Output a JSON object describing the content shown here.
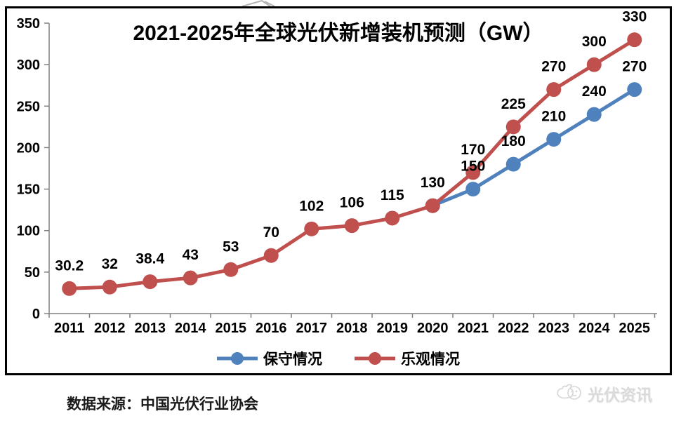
{
  "chart_data": {
    "type": "line",
    "title": "2021-2025年全球光伏新增装机预测（GW）",
    "categories": [
      "2011",
      "2012",
      "2013",
      "2014",
      "2015",
      "2016",
      "2017",
      "2018",
      "2019",
      "2020",
      "2021",
      "2022",
      "2023",
      "2024",
      "2025"
    ],
    "xlabel": "",
    "ylabel": "",
    "ylim": [
      0,
      350
    ],
    "y_ticks": [
      0,
      50,
      100,
      150,
      200,
      250,
      300,
      350
    ],
    "grid": false,
    "legend_position": "bottom",
    "axis_color": "#808080",
    "label_color": "#000000",
    "series": [
      {
        "key": "conservative",
        "name": "保守情况",
        "color": "#4f81bd",
        "values": [
          null,
          null,
          null,
          null,
          null,
          null,
          null,
          null,
          null,
          130,
          150,
          180,
          210,
          240,
          270
        ],
        "labels": [
          null,
          null,
          null,
          null,
          null,
          null,
          null,
          null,
          null,
          null,
          "150",
          "180",
          "210",
          "240",
          "270"
        ]
      },
      {
        "key": "optimistic",
        "name": "乐观情况",
        "color": "#c0504d",
        "values": [
          30.2,
          32,
          38.4,
          43,
          53,
          70,
          102,
          106,
          115,
          130,
          170,
          225,
          270,
          300,
          330
        ],
        "labels": [
          "30.2",
          "32",
          "38.4",
          "43",
          "53",
          "70",
          "102",
          "106",
          "115",
          "130",
          "170",
          "225",
          "270",
          "300",
          "330"
        ]
      }
    ]
  },
  "legend": {
    "items": [
      {
        "key": "conservative",
        "label": "保守情况",
        "color": "#4f81bd"
      },
      {
        "key": "optimistic",
        "label": "乐观情况",
        "color": "#c0504d"
      }
    ]
  },
  "footer": {
    "source_text": "数据来源：中国光伏行业协会"
  },
  "logo": {
    "text": "光伏资讯",
    "color": "#dadada"
  }
}
